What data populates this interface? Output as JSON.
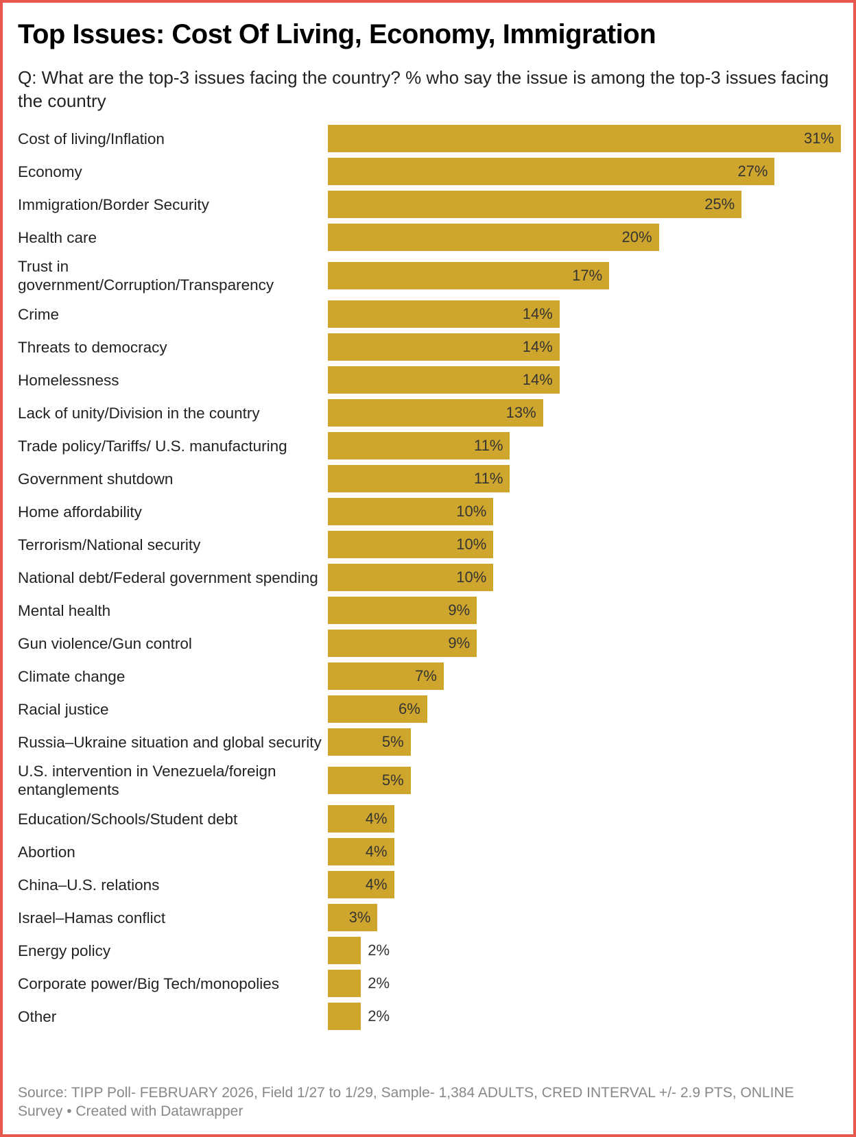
{
  "title": "Top Issues: Cost Of Living, Economy, Immigration",
  "subtitle": "Q: What are the top-3 issues facing the country? % who say the issue is among the top-3 issues facing the country",
  "footer": "Source: TIPP Poll- FEBRUARY 2026, Field 1/27 to 1/29, Sample- 1,384 ADULTS, CRED INTERVAL +/- 2.9 PTS, ONLINE Survey • Created with Datawrapper",
  "colors": {
    "bar": "#cfa62d",
    "border": "#e8574d"
  },
  "chart_data": {
    "type": "bar",
    "orientation": "horizontal",
    "xlim": [
      0,
      31
    ],
    "grid": false,
    "categories": [
      "Cost of living/Inflation",
      "Economy",
      "Immigration/Border Security",
      "Health care",
      "Trust in government/Corruption/Transparency",
      "Crime",
      "Threats to democracy",
      "Homelessness",
      "Lack of unity/Division in the country",
      "Trade policy/Tariffs/ U.S. manufacturing",
      "Government shutdown",
      "Home affordability",
      "Terrorism/National security",
      "National debt/Federal government spending",
      "Mental health",
      "Gun violence/Gun control",
      "Climate change",
      "Racial justice",
      "Russia–Ukraine situation and global security",
      "U.S. intervention in Venezuela/foreign entanglements",
      "Education/Schools/Student debt",
      "Abortion",
      "China–U.S. relations",
      "Israel–Hamas conflict",
      "Energy policy",
      "Corporate power/Big Tech/monopolies",
      "Other"
    ],
    "values": [
      31,
      27,
      25,
      20,
      17,
      14,
      14,
      14,
      13,
      11,
      11,
      10,
      10,
      10,
      9,
      9,
      7,
      6,
      5,
      5,
      4,
      4,
      4,
      3,
      2,
      2,
      2
    ],
    "labels": [
      "31%",
      "27%",
      "25%",
      "20%",
      "17%",
      "14%",
      "14%",
      "14%",
      "13%",
      "11%",
      "11%",
      "10%",
      "10%",
      "10%",
      "9%",
      "9%",
      "7%",
      "6%",
      "5%",
      "5%",
      "4%",
      "4%",
      "4%",
      "3%",
      "2%",
      "2%",
      "2%"
    ]
  }
}
